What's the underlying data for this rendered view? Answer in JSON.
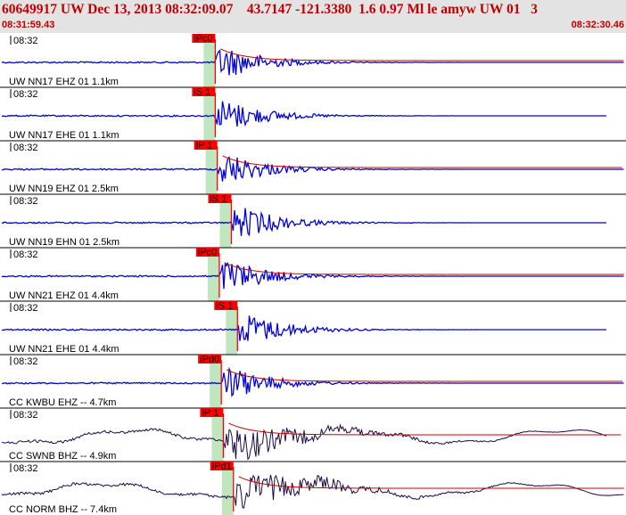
{
  "header": {
    "title": "60649917 UW Dec 13, 2013 08:32:09.07    43.7147 -121.3380  1.6 0.97 Ml le amyw UW 01   3",
    "start_time": "08:31:59.43",
    "end_time": "08:32:30.46"
  },
  "colors": {
    "header_bg": "#e3e3e3",
    "header_text": "#c00000",
    "trace_blue": "#0000dd",
    "trace_dark": "#1a0a44",
    "envelope": "#cc0000",
    "pick_bg": "#ff0000",
    "pick_band": "#bfe6bf"
  },
  "chart_data": {
    "type": "line",
    "x_range": [
      "08:31:59.43",
      "08:32:30.46"
    ],
    "traces": [
      {
        "station_label": "UW NN17 EHZ 01 1.1km",
        "time_label": "08:32",
        "pick_label": "iPc0",
        "pick_time": "08:32:10.1",
        "color": "blue",
        "envelope": true
      },
      {
        "station_label": "UW NN17 EHE 01 1.1km",
        "time_label": "08:32",
        "pick_label": "iS 1",
        "pick_time": "08:32:10.1",
        "color": "blue",
        "envelope": false
      },
      {
        "station_label": "UW NN19 EHZ 01 2.5km",
        "time_label": "08:32",
        "pick_label": "iP 1",
        "pick_time": "08:32:10.2",
        "color": "blue",
        "envelope": true
      },
      {
        "station_label": "UW NN19 EHN 01 2.5km",
        "time_label": "08:32",
        "pick_label": "iS 1",
        "pick_time": "08:32:10.9",
        "color": "blue",
        "envelope": false
      },
      {
        "station_label": "UW NN21 EHZ 01 4.4km",
        "time_label": "08:32",
        "pick_label": "iPc0",
        "pick_time": "08:32:10.3",
        "color": "blue",
        "envelope": true
      },
      {
        "station_label": "UW NN21 EHE 01 4.4km",
        "time_label": "08:32",
        "pick_label": "iS 1",
        "pick_time": "08:32:11.2",
        "color": "blue",
        "envelope": false
      },
      {
        "station_label": "CC KWBU EHZ -- 4.7km",
        "time_label": "08:32",
        "pick_label": "iPd0",
        "pick_time": "08:32:10.4",
        "color": "blue",
        "envelope": true
      },
      {
        "station_label": "CC SWNB BHZ -- 4.9km",
        "time_label": "08:32",
        "pick_label": "iP 1",
        "pick_time": "08:32:10.5",
        "color": "dark",
        "envelope": true
      },
      {
        "station_label": "CC NORM BHZ -- 7.4km",
        "time_label": "08:32",
        "pick_label": "iPd1",
        "pick_time": "08:32:11.0",
        "color": "dark",
        "envelope": true
      }
    ]
  }
}
